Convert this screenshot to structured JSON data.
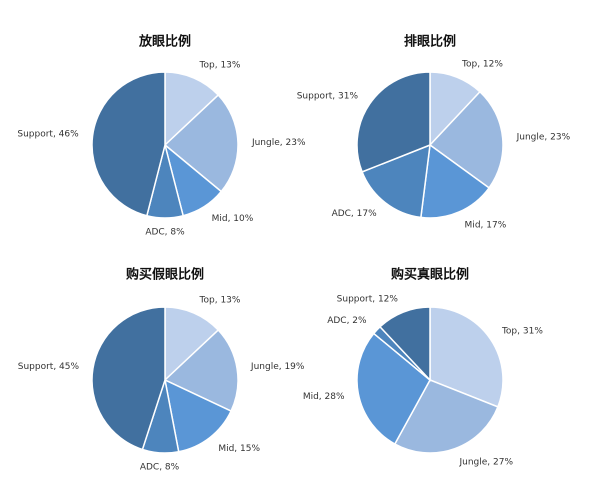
{
  "chart_data": [
    {
      "type": "pie",
      "title": "放眼比例",
      "values": [
        13,
        23,
        10,
        8,
        46
      ],
      "value_labels": [
        "Top, 13%",
        "Jungle, 23%",
        "Mid, 10%",
        "ADC, 8%",
        "Support, 46%"
      ],
      "colors": [
        "#bdd0ec",
        "#9ab8df",
        "#5a96d6",
        "#4d85bd",
        "#41709f"
      ]
    },
    {
      "type": "pie",
      "title": "排眼比例",
      "values": [
        12,
        23,
        17,
        17,
        31
      ],
      "value_labels": [
        "Top, 12%",
        "Jungle, 23%",
        "Mid, 17%",
        "ADC, 17%",
        "Support, 31%"
      ],
      "colors": [
        "#bdd0ec",
        "#9ab8df",
        "#5a96d6",
        "#4d85bd",
        "#41709f"
      ]
    },
    {
      "type": "pie",
      "title": "购买假眼比例",
      "values": [
        13,
        19,
        15,
        8,
        45
      ],
      "value_labels": [
        "Top, 13%",
        "Jungle, 19%",
        "Mid, 15%",
        "ADC, 8%",
        "Support, 45%"
      ],
      "colors": [
        "#bdd0ec",
        "#9ab8df",
        "#5a96d6",
        "#4d85bd",
        "#41709f"
      ]
    },
    {
      "type": "pie",
      "title": "购买真眼比例",
      "values": [
        31,
        27,
        28,
        2,
        12
      ],
      "value_labels": [
        "Top, 31%",
        "Jungle, 27%",
        "Mid, 28%",
        "ADC, 2%",
        "Support, 12%"
      ],
      "colors": [
        "#bdd0ec",
        "#9ab8df",
        "#5a96d6",
        "#4d85bd",
        "#41709f"
      ]
    }
  ]
}
